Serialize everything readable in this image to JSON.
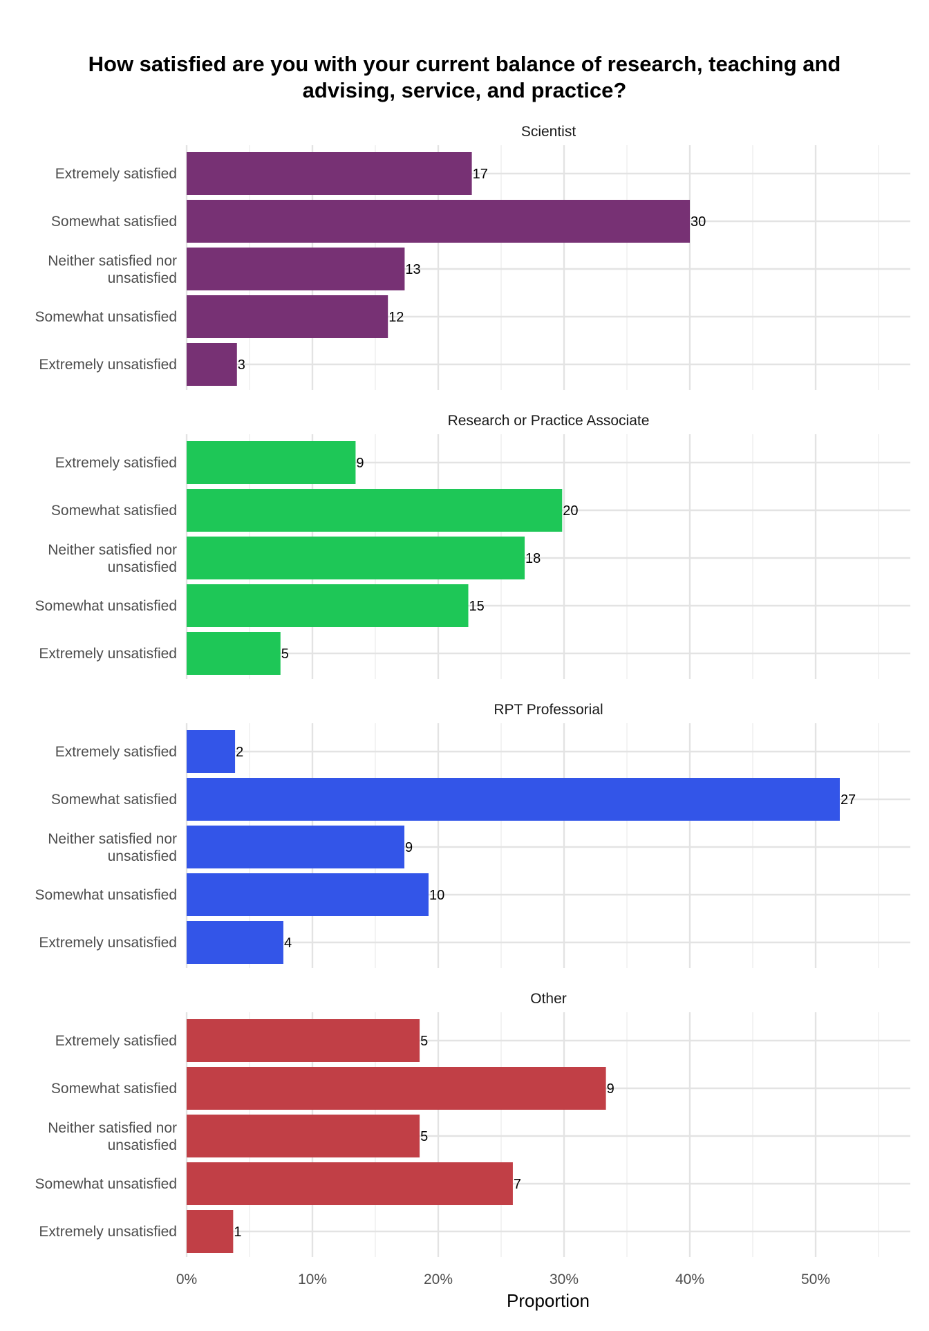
{
  "chart_data": {
    "type": "bar",
    "orientation": "horizontal",
    "title": "How satisfied are you with your current balance of research, teaching and advising, service, and practice?",
    "xlabel": "Proportion",
    "ylabel": "",
    "xlim": [
      0,
      0.575
    ],
    "x_ticks": [
      0,
      0.1,
      0.2,
      0.3,
      0.4,
      0.5
    ],
    "x_tick_labels": [
      "0%",
      "10%",
      "20%",
      "30%",
      "40%",
      "50%"
    ],
    "grid": true,
    "legend": "none",
    "categories": [
      "Extremely satisfied",
      "Somewhat satisfied",
      "Neither satisfied nor unsatisfied",
      "Somewhat unsatisfied",
      "Extremely unsatisfied"
    ],
    "category_label_lines": [
      [
        "Extremely satisfied"
      ],
      [
        "Somewhat satisfied"
      ],
      [
        "Neither satisfied nor",
        "unsatisfied"
      ],
      [
        "Somewhat unsatisfied"
      ],
      [
        "Extremely unsatisfied"
      ]
    ],
    "panels": [
      {
        "name": "Scientist",
        "color": "#773174",
        "counts": [
          17,
          30,
          13,
          12,
          3
        ],
        "proportions": [
          0.2267,
          0.4,
          0.1733,
          0.16,
          0.04
        ]
      },
      {
        "name": "Research or Practice Associate",
        "color": "#1ec757",
        "counts": [
          9,
          20,
          18,
          15,
          5
        ],
        "proportions": [
          0.1343,
          0.2985,
          0.2687,
          0.2239,
          0.0746
        ]
      },
      {
        "name": "RPT Professorial",
        "color": "#3355e8",
        "counts": [
          2,
          27,
          9,
          10,
          4
        ],
        "proportions": [
          0.0385,
          0.5192,
          0.1731,
          0.1923,
          0.0769
        ]
      },
      {
        "name": "Other",
        "color": "#c13f46",
        "counts": [
          5,
          9,
          5,
          7,
          1
        ],
        "proportions": [
          0.1852,
          0.3333,
          0.1852,
          0.2593,
          0.037
        ]
      }
    ]
  }
}
